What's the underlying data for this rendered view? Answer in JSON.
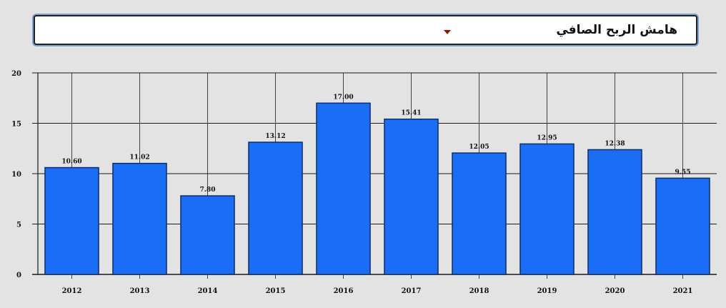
{
  "metric_selector": {
    "selected_label": "هامش الربح الصافي",
    "arrow_icon": "caret-down-icon"
  },
  "colors": {
    "bar_fill": "#1a6ef5",
    "bar_stroke": "#0d2e66",
    "grid": "#1a1a1a",
    "background": "#e3e3e3"
  },
  "chart_data": {
    "type": "bar",
    "categories": [
      "2012",
      "2013",
      "2014",
      "2015",
      "2016",
      "2017",
      "2018",
      "2019",
      "2020",
      "2021"
    ],
    "values": [
      10.6,
      11.02,
      7.8,
      13.12,
      17.0,
      15.41,
      12.05,
      12.95,
      12.38,
      9.55
    ],
    "data_labels": [
      "10.60",
      "11.02",
      "7.80",
      "13.12",
      "17.00",
      "15.41",
      "12.05",
      "12.95",
      "12.38",
      "9.55"
    ],
    "y_ticks": [
      "0",
      "5",
      "10",
      "15",
      "20"
    ],
    "ylim": [
      0,
      20
    ],
    "grid": true,
    "legend": false
  }
}
